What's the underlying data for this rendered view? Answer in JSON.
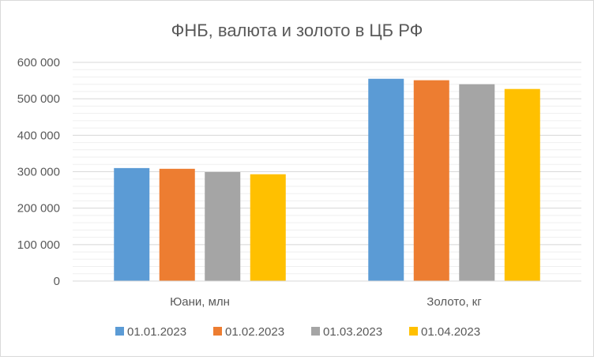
{
  "chart_data": {
    "type": "bar",
    "title": "ФНБ, валюта и золото в ЦБ РФ",
    "categories": [
      "Юани, млн",
      "Золото, кг"
    ],
    "series": [
      {
        "name": "01.01.2023",
        "color": "#5b9bd5",
        "values": [
          310000,
          555000
        ]
      },
      {
        "name": "01.02.2023",
        "color": "#ed7d31",
        "values": [
          308000,
          551000
        ]
      },
      {
        "name": "01.03.2023",
        "color": "#a5a5a5",
        "values": [
          299000,
          540000
        ]
      },
      {
        "name": "01.04.2023",
        "color": "#ffc000",
        "values": [
          293000,
          527000
        ]
      }
    ],
    "ylim": [
      0,
      600000
    ],
    "y_ticks": [
      0,
      100000,
      200000,
      300000,
      400000,
      500000,
      600000
    ],
    "y_tick_labels": [
      "0",
      "100 000",
      "200 000",
      "300 000",
      "400 000",
      "500 000",
      "600 000"
    ],
    "grid": true,
    "minor_grid": true,
    "legend_position": "bottom"
  }
}
